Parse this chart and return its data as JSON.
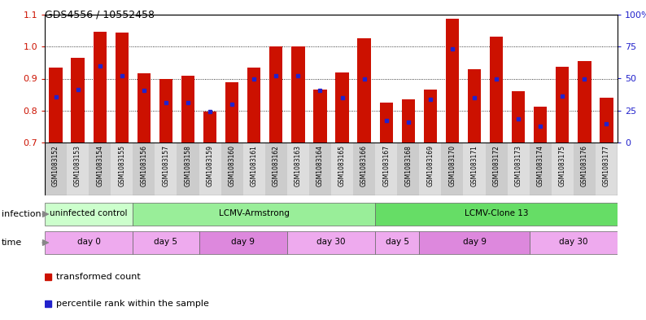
{
  "title": "GDS4556 / 10552458",
  "samples": [
    "GSM1083152",
    "GSM1083153",
    "GSM1083154",
    "GSM1083155",
    "GSM1083156",
    "GSM1083157",
    "GSM1083158",
    "GSM1083159",
    "GSM1083160",
    "GSM1083161",
    "GSM1083162",
    "GSM1083163",
    "GSM1083164",
    "GSM1083165",
    "GSM1083166",
    "GSM1083167",
    "GSM1083168",
    "GSM1083169",
    "GSM1083170",
    "GSM1083171",
    "GSM1083172",
    "GSM1083173",
    "GSM1083174",
    "GSM1083175",
    "GSM1083176",
    "GSM1083177"
  ],
  "red_values": [
    0.935,
    0.965,
    1.046,
    1.044,
    0.916,
    0.9,
    0.91,
    0.796,
    0.888,
    0.935,
    1.0,
    1.0,
    0.866,
    0.92,
    1.026,
    0.825,
    0.836,
    0.866,
    1.086,
    0.93,
    1.03,
    0.86,
    0.812,
    0.936,
    0.956,
    0.84
  ],
  "blue_values": [
    0.843,
    0.866,
    0.94,
    0.908,
    0.862,
    0.826,
    0.826,
    0.796,
    0.82,
    0.9,
    0.908,
    0.908,
    0.862,
    0.84,
    0.9,
    0.77,
    0.764,
    0.836,
    0.993,
    0.84,
    0.9,
    0.775,
    0.752,
    0.844,
    0.9,
    0.758
  ],
  "ymin": 0.7,
  "ymax": 1.1,
  "bar_color": "#cc1100",
  "dot_color": "#2222cc",
  "bg_color": "#ffffff",
  "xtick_bg_even": "#cccccc",
  "xtick_bg_odd": "#dddddd",
  "left_yticks": [
    0.7,
    0.8,
    0.9,
    1.0,
    1.1
  ],
  "right_yticks": [
    0,
    25,
    50,
    75,
    100
  ],
  "right_yticklabels": [
    "0",
    "25",
    "50",
    "75",
    "100%"
  ],
  "infection_groups": [
    {
      "label": "uninfected control",
      "start": 0,
      "end": 4,
      "color": "#ccffcc"
    },
    {
      "label": "LCMV-Armstrong",
      "start": 4,
      "end": 15,
      "color": "#99ee99"
    },
    {
      "label": "LCMV-Clone 13",
      "start": 15,
      "end": 26,
      "color": "#66dd66"
    }
  ],
  "time_groups": [
    {
      "label": "day 0",
      "start": 0,
      "end": 4,
      "color": "#eeaaee"
    },
    {
      "label": "day 5",
      "start": 4,
      "end": 7,
      "color": "#eeaaee"
    },
    {
      "label": "day 9",
      "start": 7,
      "end": 11,
      "color": "#dd88dd"
    },
    {
      "label": "day 30",
      "start": 11,
      "end": 15,
      "color": "#eeaaee"
    },
    {
      "label": "day 5",
      "start": 15,
      "end": 17,
      "color": "#eeaaee"
    },
    {
      "label": "day 9",
      "start": 17,
      "end": 22,
      "color": "#dd88dd"
    },
    {
      "label": "day 30",
      "start": 22,
      "end": 26,
      "color": "#eeaaee"
    }
  ]
}
